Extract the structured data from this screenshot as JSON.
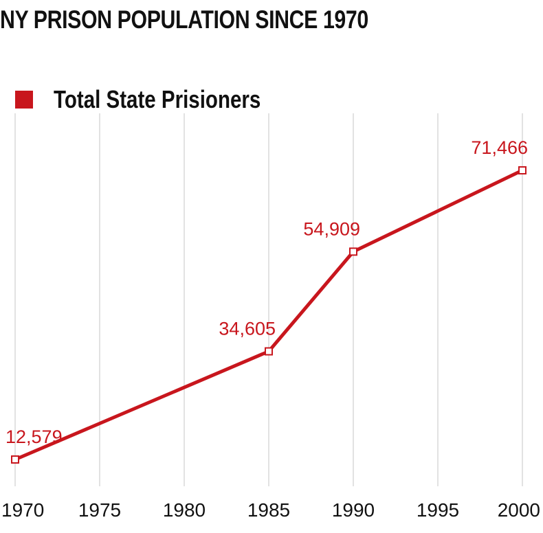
{
  "title": "NY PRISON POPULATION SINCE 1970",
  "colors": {
    "series": "#c8161d",
    "grid": "#d9d9d9",
    "text": "#111111"
  },
  "chart_data": {
    "type": "line",
    "title": "NY PRISON POPULATION SINCE 1970",
    "xlabel": "",
    "ylabel": "",
    "x_ticks": [
      1970,
      1975,
      1980,
      1985,
      1990,
      1995,
      2000
    ],
    "xlim": [
      1970,
      2000
    ],
    "ylim": [
      12579,
      71466
    ],
    "grid": "vertical",
    "legend": "top-left",
    "series": [
      {
        "name": "Total State Prisioners",
        "x": [
          1970,
          1985,
          1990,
          2000
        ],
        "values": [
          12579,
          34605,
          54909,
          71466
        ],
        "labels": [
          "12,579",
          "34,605",
          "54,909",
          "71,466"
        ]
      }
    ]
  }
}
